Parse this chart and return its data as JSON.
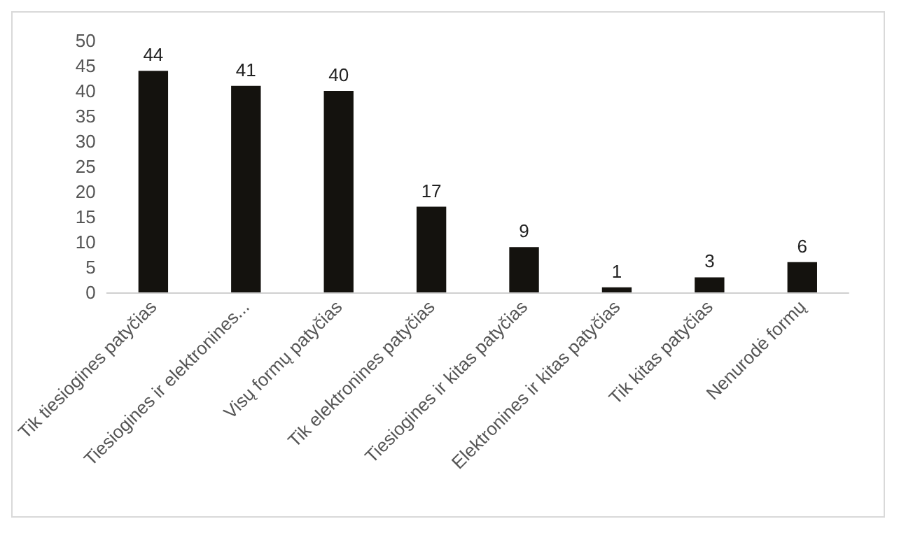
{
  "chart_data": {
    "type": "bar",
    "categories": [
      "Tik tiesiogines patyčias",
      "Tiesiogines ir elektronines...",
      "Visų formų patyčias",
      "Tik elektronines patyčias",
      "Tiesiogines ir kitas patyčias",
      "Elektronines ir kitas patyčias",
      "Tik kitas patyčias",
      "Nenurodė formų"
    ],
    "values": [
      44,
      41,
      40,
      17,
      9,
      1,
      3,
      6
    ],
    "color": "#14120e",
    "ylim": [
      0,
      50
    ],
    "yticks": [
      0,
      5,
      10,
      15,
      20,
      25,
      30,
      35,
      40,
      45,
      50
    ],
    "data_labels": true,
    "grid": false
  }
}
